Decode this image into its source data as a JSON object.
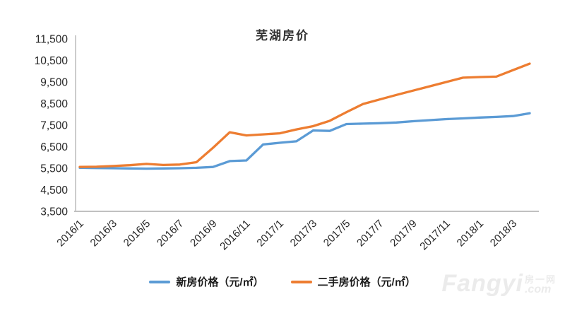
{
  "chart_data": {
    "type": "line",
    "title": "芜湖房价",
    "xlabel": "",
    "ylabel": "",
    "ylim": [
      3500,
      11500
    ],
    "yticks": [
      3500,
      4500,
      5500,
      6500,
      7500,
      8500,
      9500,
      10500,
      11500
    ],
    "grid": false,
    "legend_position": "bottom",
    "x_tick_step": 2,
    "categories": [
      "2016/1",
      "2016/2",
      "2016/3",
      "2016/4",
      "2016/5",
      "2016/6",
      "2016/7",
      "2016/8",
      "2016/9",
      "2016/10",
      "2016/11",
      "2016/12",
      "2017/1",
      "2017/2",
      "2017/3",
      "2017/4",
      "2017/5",
      "2017/6",
      "2017/7",
      "2017/8",
      "2017/9",
      "2017/10",
      "2017/11",
      "2017/12",
      "2018/1",
      "2018/2",
      "2018/3",
      "2018/4"
    ],
    "series": [
      {
        "name": "新房价格（元/㎡）",
        "color": "#5B9BD5",
        "values": [
          5520,
          5510,
          5500,
          5490,
          5480,
          5490,
          5500,
          5520,
          5560,
          5830,
          5860,
          6600,
          6680,
          6750,
          7250,
          7230,
          7550,
          7570,
          7590,
          7620,
          7680,
          7730,
          7780,
          7810,
          7850,
          7880,
          7920,
          8050
        ]
      },
      {
        "name": "二手房价格（元/㎡）",
        "color": "#ED7D31",
        "values": [
          5560,
          5570,
          5600,
          5640,
          5700,
          5650,
          5670,
          5780,
          6450,
          7170,
          7020,
          7070,
          7120,
          7300,
          7450,
          7700,
          8100,
          8480,
          8690,
          8900,
          9100,
          9300,
          9500,
          9700,
          9730,
          9750,
          10050,
          10350
        ]
      }
    ]
  },
  "colors": {
    "axis_line": "#c0c0c0",
    "tick_text": "#262626",
    "title_text": "#333333"
  },
  "watermark": {
    "main": "Fangyi",
    "cjk": "房一网",
    "com": ".com"
  }
}
